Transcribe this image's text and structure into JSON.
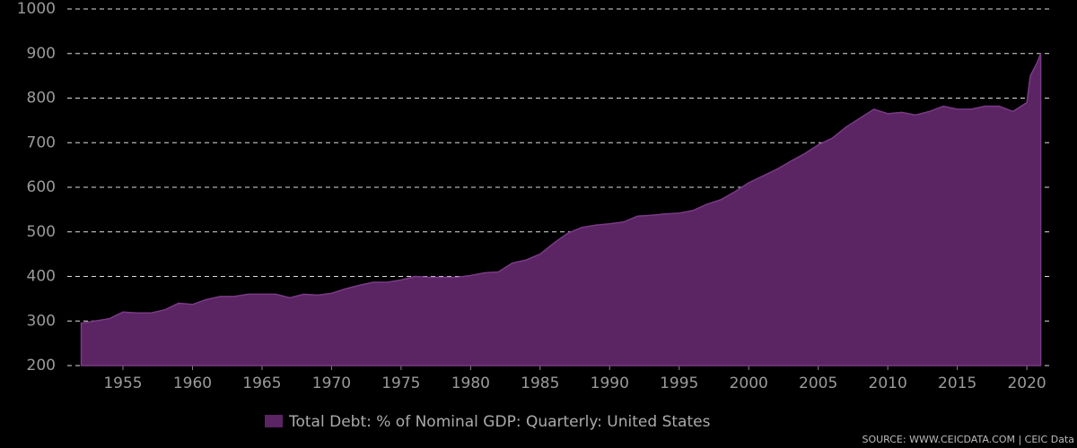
{
  "chart_data": {
    "type": "area",
    "x": [
      1952,
      1953,
      1954,
      1955,
      1956,
      1957,
      1958,
      1959,
      1960,
      1961,
      1962,
      1963,
      1964,
      1965,
      1966,
      1967,
      1968,
      1969,
      1970,
      1971,
      1972,
      1973,
      1974,
      1975,
      1976,
      1977,
      1978,
      1979,
      1980,
      1981,
      1982,
      1983,
      1984,
      1985,
      1986,
      1987,
      1988,
      1989,
      1990,
      1991,
      1992,
      1993,
      1994,
      1995,
      1996,
      1997,
      1998,
      1999,
      2000,
      2001,
      2002,
      2003,
      2004,
      2005,
      2006,
      2007,
      2008,
      2009,
      2010,
      2011,
      2012,
      2013,
      2014,
      2015,
      2016,
      2017,
      2018,
      2019,
      2020,
      2020.25,
      2020.75,
      2021
    ],
    "series": [
      {
        "name": "Total Debt: % of Nominal GDP: Quarterly: United States",
        "color": "#5b2463",
        "values": [
          295,
          300,
          305,
          320,
          318,
          318,
          325,
          340,
          337,
          348,
          355,
          355,
          360,
          360,
          360,
          352,
          360,
          358,
          362,
          372,
          380,
          387,
          387,
          392,
          400,
          398,
          398,
          398,
          402,
          408,
          410,
          430,
          437,
          450,
          475,
          497,
          510,
          515,
          518,
          522,
          535,
          537,
          540,
          542,
          548,
          562,
          572,
          590,
          610,
          625,
          640,
          658,
          675,
          695,
          710,
          735,
          755,
          775,
          765,
          768,
          762,
          770,
          782,
          775,
          775,
          782,
          782,
          770,
          790,
          850,
          880,
          900
        ]
      }
    ],
    "xlim": [
      1951,
      2021.8
    ],
    "xticks": [
      1955,
      1960,
      1965,
      1970,
      1975,
      1980,
      1985,
      1990,
      1995,
      2000,
      2005,
      2010,
      2015,
      2020
    ],
    "ylim": [
      200,
      1000
    ],
    "yticks": [
      200,
      300,
      400,
      500,
      600,
      700,
      800,
      900,
      1000
    ],
    "grid": true,
    "legend": "bottom",
    "source": "SOURCE: WWW.CEICDATA.COM | CEIC Data"
  }
}
